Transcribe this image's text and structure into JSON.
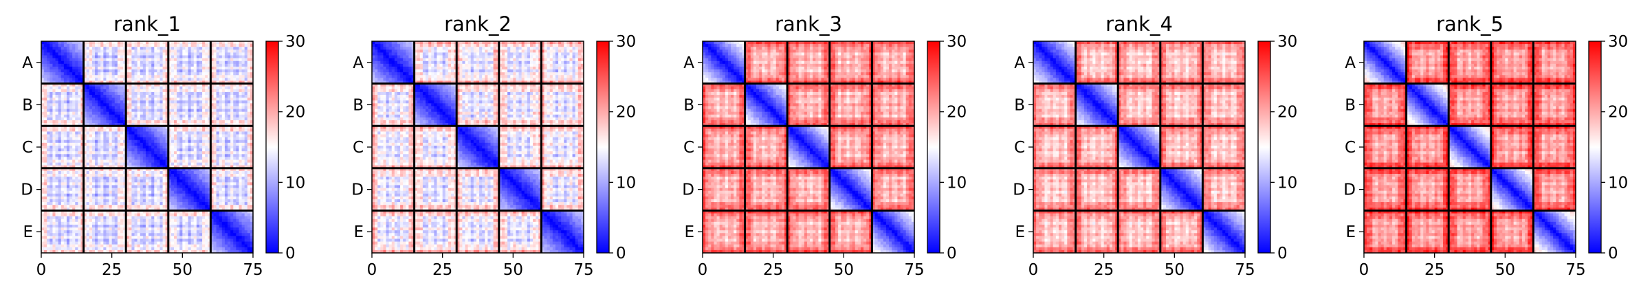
{
  "chart_data": [
    {
      "type": "heatmap",
      "title": "rank_1",
      "row_labels": [
        "A",
        "B",
        "C",
        "D",
        "E"
      ],
      "xticks": [
        0,
        25,
        50,
        75
      ],
      "xlim": [
        0,
        75
      ],
      "colorbar": {
        "min": 0,
        "max": 30,
        "ticks": [
          0,
          10,
          20,
          30
        ],
        "colormap": "bwr"
      },
      "block_size": 15,
      "block_boundaries": [
        15,
        30,
        45,
        60
      ],
      "diagonal_value": 0,
      "within_block_edge_value": 12,
      "off_block_value": 12.5,
      "block_edge_value": 17,
      "stripe_amplitude": 4
    },
    {
      "type": "heatmap",
      "title": "rank_2",
      "row_labels": [
        "A",
        "B",
        "C",
        "D",
        "E"
      ],
      "xticks": [
        0,
        25,
        50,
        75
      ],
      "xlim": [
        0,
        75
      ],
      "colorbar": {
        "min": 0,
        "max": 30,
        "ticks": [
          0,
          10,
          20,
          30
        ],
        "colormap": "bwr"
      },
      "block_size": 15,
      "block_boundaries": [
        15,
        30,
        45,
        60
      ],
      "diagonal_value": 0,
      "within_block_edge_value": 12,
      "off_block_value": 13.5,
      "block_edge_value": 19,
      "stripe_amplitude": 4
    },
    {
      "type": "heatmap",
      "title": "rank_3",
      "row_labels": [
        "A",
        "B",
        "C",
        "D",
        "E"
      ],
      "xticks": [
        0,
        25,
        50,
        75
      ],
      "xlim": [
        0,
        75
      ],
      "colorbar": {
        "min": 0,
        "max": 30,
        "ticks": [
          0,
          10,
          20,
          30
        ],
        "colormap": "bwr"
      },
      "block_size": 15,
      "block_boundaries": [
        15,
        30,
        45,
        60
      ],
      "diagonal_value": 0,
      "within_block_edge_value": 16,
      "off_block_value": 19,
      "block_edge_value": 25,
      "stripe_amplitude": 3
    },
    {
      "type": "heatmap",
      "title": "rank_4",
      "row_labels": [
        "A",
        "B",
        "C",
        "D",
        "E"
      ],
      "xticks": [
        0,
        25,
        50,
        75
      ],
      "xlim": [
        0,
        75
      ],
      "colorbar": {
        "min": 0,
        "max": 30,
        "ticks": [
          0,
          10,
          20,
          30
        ],
        "colormap": "bwr"
      },
      "block_size": 15,
      "block_boundaries": [
        15,
        30,
        45,
        60
      ],
      "diagonal_value": 0,
      "within_block_edge_value": 15,
      "off_block_value": 18,
      "block_edge_value": 24,
      "stripe_amplitude": 3
    },
    {
      "type": "heatmap",
      "title": "rank_5",
      "row_labels": [
        "A",
        "B",
        "C",
        "D",
        "E"
      ],
      "xticks": [
        0,
        25,
        50,
        75
      ],
      "xlim": [
        0,
        75
      ],
      "colorbar": {
        "min": 0,
        "max": 30,
        "ticks": [
          0,
          10,
          20,
          30
        ],
        "colormap": "bwr"
      },
      "block_size": 15,
      "block_boundaries": [
        15,
        30,
        45,
        60
      ],
      "diagonal_value": 0,
      "within_block_edge_value": 18,
      "off_block_value": 20,
      "block_edge_value": 27,
      "stripe_amplitude": 3
    }
  ]
}
